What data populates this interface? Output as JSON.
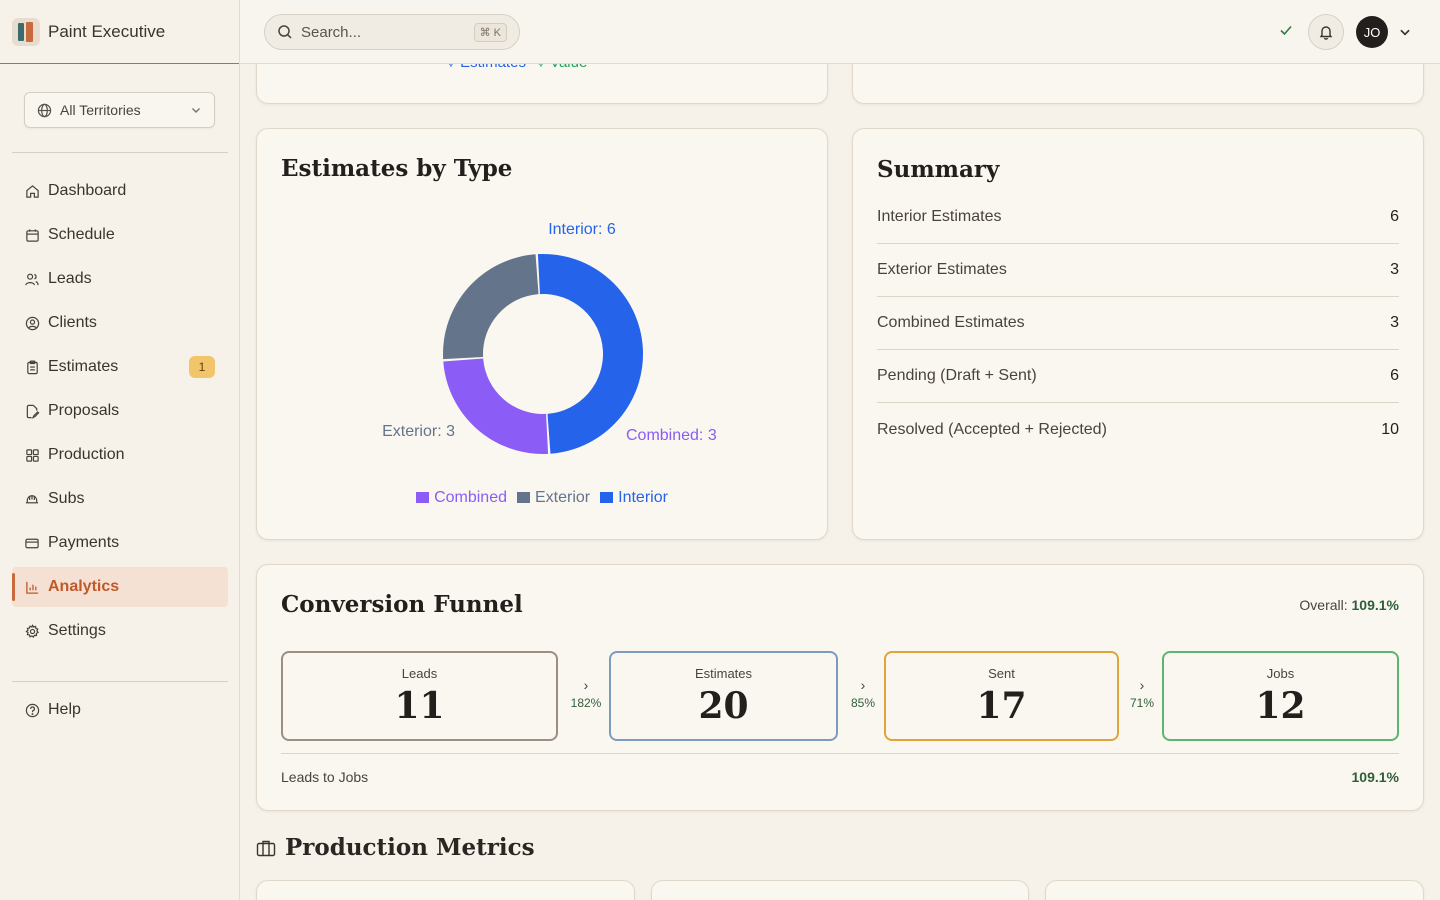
{
  "app": {
    "name": "Paint Executive"
  },
  "sidebar": {
    "territory": "All Territories",
    "items": [
      {
        "label": "Dashboard",
        "icon": "home-icon"
      },
      {
        "label": "Schedule",
        "icon": "calendar-icon"
      },
      {
        "label": "Leads",
        "icon": "users-icon"
      },
      {
        "label": "Clients",
        "icon": "user-circle-icon"
      },
      {
        "label": "Estimates",
        "icon": "clipboard-icon",
        "badge": "1"
      },
      {
        "label": "Proposals",
        "icon": "file-edit-icon"
      },
      {
        "label": "Production",
        "icon": "grid-icon"
      },
      {
        "label": "Subs",
        "icon": "hard-hat-icon"
      },
      {
        "label": "Payments",
        "icon": "credit-card-icon"
      },
      {
        "label": "Analytics",
        "icon": "bar-chart-icon",
        "active": true
      },
      {
        "label": "Settings",
        "icon": "gear-icon"
      }
    ],
    "help": "Help"
  },
  "topbar": {
    "search_placeholder": "Search...",
    "shortcut": "⌘ K",
    "avatar_initials": "JO"
  },
  "partial_legend": {
    "estimates": "Estimates",
    "value": "Value"
  },
  "estimates_by_type": {
    "title": "Estimates by Type",
    "chart_data": {
      "type": "pie",
      "slices": [
        {
          "label": "Interior",
          "value": 6,
          "color": "#2563eb",
          "data_label": "Interior: 6"
        },
        {
          "label": "Combined",
          "value": 3,
          "color": "#8b5cf6",
          "data_label": "Combined: 3"
        },
        {
          "label": "Exterior",
          "value": 3,
          "color": "#64748b",
          "data_label": "Exterior: 3"
        }
      ],
      "legend": [
        "Combined",
        "Exterior",
        "Interior"
      ],
      "legend_position": "bottom"
    }
  },
  "summary": {
    "title": "Summary",
    "rows": [
      {
        "label": "Interior Estimates",
        "value": "6"
      },
      {
        "label": "Exterior Estimates",
        "value": "3"
      },
      {
        "label": "Combined Estimates",
        "value": "3"
      },
      {
        "label": "Pending (Draft + Sent)",
        "value": "6"
      },
      {
        "label": "Resolved (Accepted + Rejected)",
        "value": "10"
      }
    ]
  },
  "funnel": {
    "title": "Conversion Funnel",
    "overall_label": "Overall:",
    "overall_value": "109.1%",
    "stages": [
      {
        "label": "Leads",
        "value": "11",
        "color": "#9a8f82"
      },
      {
        "label": "Estimates",
        "value": "20",
        "color": "#7d9bbf"
      },
      {
        "label": "Sent",
        "value": "17",
        "color": "#e0a43a"
      },
      {
        "label": "Jobs",
        "value": "12",
        "color": "#5cb574"
      }
    ],
    "rates": [
      "182%",
      "85%",
      "71%"
    ],
    "footer_label": "Leads to Jobs",
    "footer_value": "109.1%"
  },
  "production": {
    "title": "Production Metrics"
  }
}
